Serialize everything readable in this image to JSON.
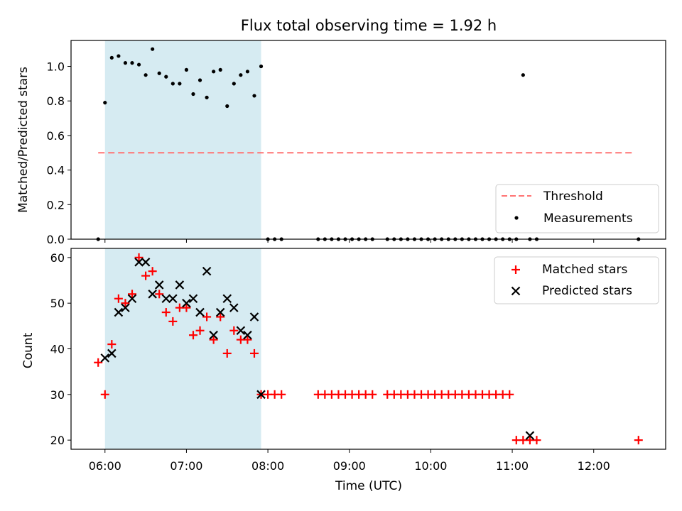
{
  "chart_data": [
    {
      "type": "scatter",
      "title": "Flux total observing time = 1.92 h",
      "ylabel": "Matched/Predicted stars",
      "ylim": [
        0,
        1.15
      ],
      "yticks": [
        0.0,
        0.2,
        0.4,
        0.6,
        0.8,
        1.0
      ],
      "ytick_labels": [
        "0.0",
        "0.2",
        "0.4",
        "0.6",
        "0.8",
        "1.0"
      ],
      "shaded_span": [
        "06:00",
        "07:55"
      ],
      "series": [
        {
          "name": "Threshold",
          "style": "dashed-line",
          "color": "#ff7373",
          "x": [
            "05:55",
            "12:30"
          ],
          "y": [
            0.5,
            0.5
          ]
        },
        {
          "name": "Measurements",
          "style": "dot",
          "color": "#000000",
          "x": [
            "05:55",
            "06:00",
            "06:05",
            "06:10",
            "06:15",
            "06:20",
            "06:25",
            "06:30",
            "06:35",
            "06:40",
            "06:45",
            "06:50",
            "06:55",
            "07:00",
            "07:05",
            "07:10",
            "07:15",
            "07:20",
            "07:25",
            "07:30",
            "07:35",
            "07:40",
            "07:45",
            "07:50",
            "07:55",
            "08:00",
            "08:05",
            "08:10",
            "08:37",
            "08:42",
            "08:47",
            "08:52",
            "08:57",
            "09:02",
            "09:07",
            "09:12",
            "09:17",
            "09:28",
            "09:33",
            "09:38",
            "09:43",
            "09:48",
            "09:53",
            "09:58",
            "10:03",
            "10:08",
            "10:13",
            "10:18",
            "10:23",
            "10:28",
            "10:33",
            "10:38",
            "10:43",
            "10:48",
            "10:53",
            "10:58",
            "11:03",
            "11:08",
            "11:13",
            "11:18",
            "12:33"
          ],
          "y": [
            0.0,
            0.79,
            1.05,
            1.06,
            1.02,
            1.02,
            1.01,
            0.95,
            1.1,
            0.96,
            0.94,
            0.9,
            0.9,
            0.98,
            0.84,
            0.92,
            0.82,
            0.97,
            0.98,
            0.77,
            0.9,
            0.95,
            0.97,
            0.83,
            1.0,
            0.0,
            0.0,
            0.0,
            0.0,
            0.0,
            0.0,
            0.0,
            0.0,
            0.0,
            0.0,
            0.0,
            0.0,
            0.0,
            0.0,
            0.0,
            0.0,
            0.0,
            0.0,
            0.0,
            0.0,
            0.0,
            0.0,
            0.0,
            0.0,
            0.0,
            0.0,
            0.0,
            0.0,
            0.0,
            0.0,
            0.0,
            0.0,
            0.95,
            0.0,
            0.0,
            0.0
          ]
        }
      ],
      "legend": "lower-right"
    },
    {
      "type": "scatter",
      "xlabel": "Time (UTC)",
      "ylabel": "Count",
      "ylim": [
        18,
        62
      ],
      "yticks": [
        20,
        30,
        40,
        50,
        60
      ],
      "xlim": [
        "05:35",
        "12:53"
      ],
      "xticks": [
        "06:00",
        "07:00",
        "08:00",
        "09:00",
        "10:00",
        "11:00",
        "12:00"
      ],
      "shaded_span": [
        "06:00",
        "07:55"
      ],
      "series": [
        {
          "name": "Matched stars",
          "marker": "+",
          "color": "#ff0000",
          "x": [
            "05:55",
            "06:00",
            "06:05",
            "06:10",
            "06:15",
            "06:20",
            "06:25",
            "06:30",
            "06:35",
            "06:40",
            "06:45",
            "06:50",
            "06:55",
            "07:00",
            "07:05",
            "07:10",
            "07:15",
            "07:20",
            "07:25",
            "07:30",
            "07:35",
            "07:40",
            "07:45",
            "07:50",
            "07:55",
            "08:00",
            "08:05",
            "08:10",
            "08:37",
            "08:42",
            "08:47",
            "08:52",
            "08:57",
            "09:02",
            "09:07",
            "09:12",
            "09:17",
            "09:28",
            "09:33",
            "09:38",
            "09:43",
            "09:48",
            "09:53",
            "09:58",
            "10:03",
            "10:08",
            "10:13",
            "10:18",
            "10:23",
            "10:28",
            "10:33",
            "10:38",
            "10:43",
            "10:48",
            "10:53",
            "10:58",
            "11:03",
            "11:08",
            "11:13",
            "11:18",
            "12:33"
          ],
          "y": [
            37,
            30,
            41,
            51,
            50,
            52,
            60,
            56,
            57,
            52,
            48,
            46,
            49,
            49,
            43,
            44,
            47,
            42,
            47,
            39,
            44,
            42,
            42,
            39,
            30,
            30,
            30,
            30,
            30,
            30,
            30,
            30,
            30,
            30,
            30,
            30,
            30,
            30,
            30,
            30,
            30,
            30,
            30,
            30,
            30,
            30,
            30,
            30,
            30,
            30,
            30,
            30,
            30,
            30,
            30,
            30,
            20,
            20,
            20,
            20,
            20
          ]
        },
        {
          "name": "Predicted stars",
          "marker": "x",
          "color": "#000000",
          "x": [
            "06:00",
            "06:05",
            "06:10",
            "06:15",
            "06:20",
            "06:25",
            "06:30",
            "06:35",
            "06:40",
            "06:45",
            "06:50",
            "06:55",
            "07:00",
            "07:05",
            "07:10",
            "07:15",
            "07:20",
            "07:25",
            "07:30",
            "07:35",
            "07:40",
            "07:45",
            "07:50",
            "07:55",
            "11:13"
          ],
          "y": [
            38,
            39,
            48,
            49,
            51,
            59,
            59,
            52,
            54,
            51,
            51,
            54,
            50,
            51,
            48,
            57,
            43,
            48,
            51,
            49,
            44,
            43,
            47,
            30,
            21
          ]
        }
      ],
      "legend": "upper-right"
    }
  ]
}
